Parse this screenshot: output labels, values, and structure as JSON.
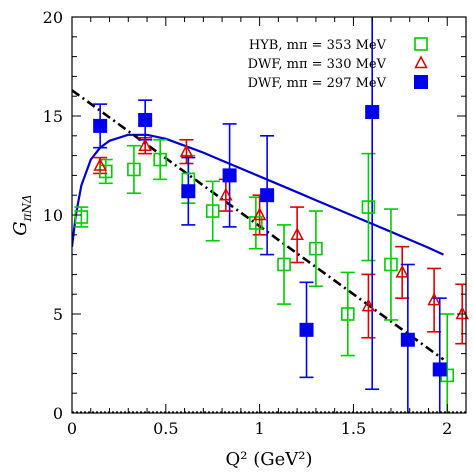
{
  "chart_data": {
    "type": "scatter",
    "xlim": [
      0,
      2.1
    ],
    "ylim": [
      0,
      20
    ],
    "x_ticks": [
      "0",
      "0.5",
      "1",
      "1.5",
      "2"
    ],
    "y_ticks": [
      "0",
      "5",
      "10",
      "15",
      "20"
    ],
    "xlabel": "Q² (GeV²)",
    "ylabel": "G_{πNΔ}",
    "ylabel_main": "G",
    "ylabel_sub": "πNΔ",
    "grid": false,
    "legend_position": "top-right",
    "series": [
      {
        "name": "HYB, m_π = 353 MeV",
        "legend_label": "HYB, mπ = 353 MeV",
        "marker": "open-square",
        "color": "#00cc00",
        "points": [
          {
            "x": 0.05,
            "y": 9.9,
            "err": 0.5
          },
          {
            "x": 0.18,
            "y": 12.2,
            "err": 0.6
          },
          {
            "x": 0.33,
            "y": 12.3,
            "err": 1.2
          },
          {
            "x": 0.47,
            "y": 12.8,
            "err": 1.0
          },
          {
            "x": 0.62,
            "y": 11.8,
            "err": 1.2
          },
          {
            "x": 0.75,
            "y": 10.2,
            "err": 1.5
          },
          {
            "x": 0.98,
            "y": 9.6,
            "err": 1.3
          },
          {
            "x": 1.13,
            "y": 7.5,
            "err": 2.0
          },
          {
            "x": 1.3,
            "y": 8.3,
            "err": 1.9
          },
          {
            "x": 1.47,
            "y": 5.0,
            "err": 2.1
          },
          {
            "x": 1.58,
            "y": 10.4,
            "err": 2.7
          },
          {
            "x": 1.7,
            "y": 7.5,
            "err": 2.8
          },
          {
            "x": 2.0,
            "y": 1.9,
            "err": 3.1
          }
        ]
      },
      {
        "name": "DWF, m_π = 330 MeV",
        "legend_label": "DWF, mπ = 330 MeV",
        "marker": "open-triangle",
        "color": "#dd0000",
        "points": [
          {
            "x": 0.15,
            "y": 12.5,
            "err": 0.4
          },
          {
            "x": 0.39,
            "y": 13.5,
            "err": 0.4
          },
          {
            "x": 0.61,
            "y": 13.2,
            "err": 0.6
          },
          {
            "x": 0.82,
            "y": 11.0,
            "err": 0.8
          },
          {
            "x": 1.0,
            "y": 10.0,
            "err": 1.0
          },
          {
            "x": 1.2,
            "y": 9.0,
            "err": 1.4
          },
          {
            "x": 1.58,
            "y": 5.4,
            "err": 1.6
          },
          {
            "x": 1.76,
            "y": 7.1,
            "err": 1.3
          },
          {
            "x": 1.93,
            "y": 5.7,
            "err": 1.6
          },
          {
            "x": 2.08,
            "y": 5.0,
            "err": 1.5
          }
        ]
      },
      {
        "name": "DWF, m_π = 297 MeV",
        "legend_label": "DWF, mπ = 297 MeV",
        "marker": "filled-square",
        "color": "#0000ee",
        "points": [
          {
            "x": 0.15,
            "y": 14.5,
            "err": 1.1
          },
          {
            "x": 0.39,
            "y": 14.8,
            "err": 1.0
          },
          {
            "x": 0.62,
            "y": 11.2,
            "err": 1.7
          },
          {
            "x": 0.84,
            "y": 12.0,
            "err": 2.6
          },
          {
            "x": 1.04,
            "y": 11.0,
            "err": 3.0
          },
          {
            "x": 1.25,
            "y": 4.2,
            "err": 2.4
          },
          {
            "x": 1.6,
            "y": 15.2,
            "err": 14.0
          },
          {
            "x": 1.79,
            "y": 3.7,
            "err": 3.8
          },
          {
            "x": 1.96,
            "y": 2.2,
            "err": 3.6
          }
        ]
      }
    ],
    "curves": [
      {
        "style": "solid",
        "color": "#0000cc",
        "x": [
          0.0,
          0.02,
          0.05,
          0.1,
          0.15,
          0.2,
          0.3,
          0.4,
          0.5,
          0.6,
          0.7,
          0.8,
          0.9,
          1.0,
          1.1,
          1.2,
          1.3,
          1.4,
          1.5,
          1.6,
          1.7,
          1.8,
          1.9,
          1.98
        ],
        "y": [
          8.4,
          10.0,
          11.5,
          12.8,
          13.4,
          13.75,
          14.05,
          14.05,
          13.85,
          13.5,
          13.15,
          12.75,
          12.35,
          11.95,
          11.55,
          11.15,
          10.75,
          10.35,
          9.95,
          9.55,
          9.15,
          8.75,
          8.35,
          8.0
        ]
      },
      {
        "style": "dashdot",
        "color": "#000000",
        "x": [
          0.0,
          1.98
        ],
        "y": [
          16.3,
          2.7
        ]
      }
    ]
  }
}
